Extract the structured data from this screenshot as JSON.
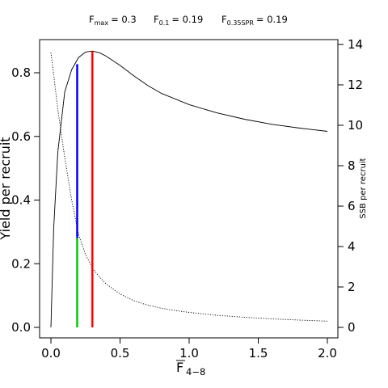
{
  "chart_data": {
    "type": "line",
    "title": "",
    "xlabel": "F",
    "xlabel_sub": "4−8",
    "ylabel": "Yield per recruit",
    "y2label": "SSB per recruit",
    "xlim": [
      0,
      2
    ],
    "ylim": [
      0,
      0.87
    ],
    "y2lim": [
      0,
      13.9
    ],
    "xticks": [
      "0.0",
      "0.5",
      "1.0",
      "1.5",
      "2.0"
    ],
    "yticks": [
      "0.0",
      "0.2",
      "0.4",
      "0.6",
      "0.8"
    ],
    "y2ticks": [
      "0",
      "2",
      "4",
      "6",
      "8",
      "10",
      "12",
      "14"
    ],
    "xtick_values": [
      0,
      0.5,
      1.0,
      1.5,
      2.0
    ],
    "ytick_values": [
      0,
      0.2,
      0.4,
      0.6,
      0.8
    ],
    "y2tick_values": [
      0,
      2,
      4,
      6,
      8,
      10,
      12,
      14
    ],
    "reference_points": [
      {
        "name": "F",
        "sub": "max",
        "value": "= 0.3"
      },
      {
        "name": "F",
        "sub": "0.1",
        "value": "= 0.19"
      },
      {
        "name": "F",
        "sub": "0.35SPR",
        "value": "= 0.19"
      }
    ],
    "series": [
      {
        "axis": "left",
        "line": "solid",
        "x": [
          0,
          0.02,
          0.05,
          0.1,
          0.15,
          0.2,
          0.25,
          0.3,
          0.35,
          0.4,
          0.5,
          0.6,
          0.7,
          0.8,
          1.0,
          1.2,
          1.4,
          1.6,
          1.8,
          2.0
        ],
        "y": [
          0,
          0.31,
          0.55,
          0.74,
          0.81,
          0.848,
          0.865,
          0.868,
          0.863,
          0.852,
          0.823,
          0.79,
          0.76,
          0.735,
          0.7,
          0.674,
          0.654,
          0.638,
          0.626,
          0.616
        ]
      },
      {
        "axis": "right",
        "line": "dotted",
        "x": [
          0,
          0.02,
          0.05,
          0.1,
          0.15,
          0.2,
          0.25,
          0.3,
          0.35,
          0.4,
          0.5,
          0.6,
          0.7,
          0.8,
          0.9,
          1.0,
          1.2,
          1.4,
          1.6,
          1.8,
          2.0
        ],
        "y": [
          13.6,
          12.5,
          10.8,
          8.4,
          6.3,
          4.6,
          3.6,
          2.95,
          2.5,
          2.15,
          1.65,
          1.32,
          1.1,
          0.95,
          0.83,
          0.74,
          0.6,
          0.5,
          0.42,
          0.36,
          0.31
        ]
      }
    ],
    "segments": [
      {
        "color": "#ff0000",
        "x": 0.3,
        "y0": 0,
        "y1": 0.868
      },
      {
        "color": "#0000ff",
        "x": 0.19,
        "y0": 0.28,
        "y1": 0.827
      },
      {
        "color": "#00cc00",
        "x": 0.19,
        "y0": 0,
        "y1": 0.28
      }
    ]
  }
}
